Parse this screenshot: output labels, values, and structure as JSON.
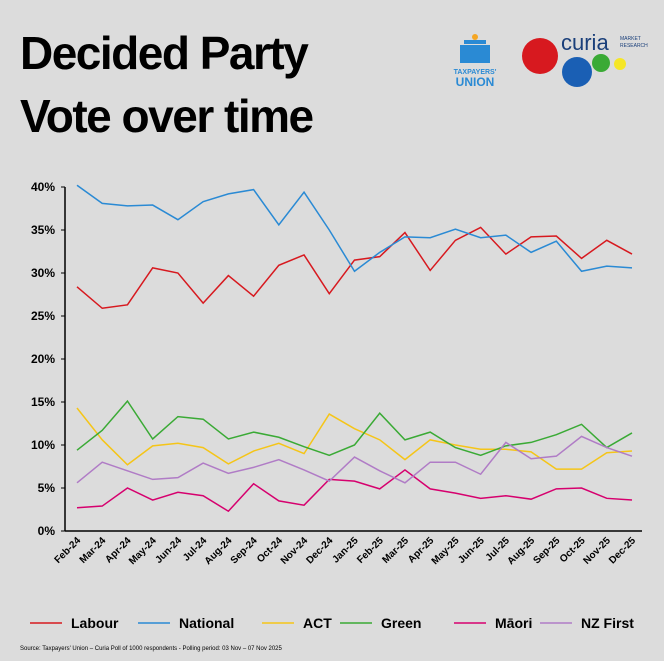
{
  "chart_data": {
    "type": "line",
    "title": "Decided Party Vote over time",
    "categories": [
      "Feb-24",
      "Mar-24",
      "Apr-24",
      "May-24",
      "Jun-24",
      "Jul-24",
      "Aug-24",
      "Sep-24",
      "Oct-24",
      "Nov-24",
      "Dec-24",
      "Jan-25",
      "Feb-25",
      "Mar-25",
      "Apr-25",
      "May-25",
      "Jun-25",
      "Jul-25",
      "Aug-25",
      "Sep-25",
      "Oct-25",
      "Nov-25",
      "Dec-25"
    ],
    "series": [
      {
        "name": "Labour",
        "color": "#d7191f",
        "values": [
          28.4,
          25.9,
          26.3,
          30.6,
          30.0,
          26.5,
          29.7,
          27.3,
          30.9,
          32.1,
          27.6,
          31.5,
          31.9,
          34.7,
          30.3,
          33.8,
          35.3,
          32.2,
          34.2,
          34.3,
          31.7,
          33.8,
          32.2
        ]
      },
      {
        "name": "National",
        "color": "#2a8ad4",
        "values": [
          40.2,
          38.1,
          37.8,
          37.9,
          36.2,
          38.3,
          39.2,
          39.7,
          35.6,
          39.4,
          35.0,
          30.2,
          32.4,
          34.2,
          34.1,
          35.1,
          34.1,
          34.4,
          32.4,
          33.7,
          30.2,
          30.8,
          30.6
        ]
      },
      {
        "name": "ACT",
        "color": "#f5c518",
        "values": [
          14.3,
          10.6,
          7.7,
          9.9,
          10.2,
          9.7,
          7.8,
          9.3,
          10.2,
          9.0,
          13.6,
          11.9,
          10.6,
          8.3,
          10.6,
          10.0,
          9.5,
          9.5,
          9.2,
          7.2,
          7.2,
          9.1,
          9.3
        ]
      },
      {
        "name": "Green",
        "color": "#3aaa35",
        "values": [
          9.4,
          11.7,
          15.1,
          10.7,
          13.3,
          13.0,
          10.7,
          11.5,
          10.9,
          9.8,
          8.8,
          10.0,
          13.7,
          10.6,
          11.5,
          9.7,
          8.8,
          9.9,
          10.3,
          11.2,
          12.4,
          9.7,
          11.4
        ]
      },
      {
        "name": "Māori",
        "color": "#d6006e",
        "values": [
          2.7,
          2.9,
          5.0,
          3.6,
          4.5,
          4.1,
          2.3,
          5.5,
          3.5,
          3.0,
          6.0,
          5.8,
          4.9,
          7.1,
          4.9,
          4.4,
          3.8,
          4.1,
          3.7,
          4.9,
          5.0,
          3.8,
          3.6
        ]
      },
      {
        "name": "NZ First",
        "color": "#b07cc6",
        "values": [
          5.6,
          8.0,
          7.0,
          6.0,
          6.2,
          7.9,
          6.7,
          7.4,
          8.3,
          7.1,
          5.8,
          8.6,
          7.0,
          5.6,
          8.0,
          8.0,
          6.6,
          10.3,
          8.4,
          8.7,
          11.0,
          9.7,
          8.7
        ]
      }
    ],
    "ylim": [
      0,
      40
    ],
    "yticks": [
      {
        "value": 0,
        "label": "0%"
      },
      {
        "value": 5,
        "label": "5%"
      },
      {
        "value": 10,
        "label": "10%"
      },
      {
        "value": 15,
        "label": "15%"
      },
      {
        "value": 20,
        "label": "20%"
      },
      {
        "value": 25,
        "label": "25%"
      },
      {
        "value": 30,
        "label": "30%"
      },
      {
        "value": 35,
        "label": "35%"
      },
      {
        "value": 40,
        "label": "40%"
      }
    ],
    "grid": false,
    "legend": "bottom",
    "source": "Source: Taxpayers' Union – Curia Poll of 1000 respondents - Polling period: 03 Nov – 07 Nov 2025"
  },
  "logos": {
    "taxpayers_union": [
      "TAXPAYERS'",
      "UNION"
    ],
    "curia": "curia",
    "curia_tagline": [
      "MARKET",
      "RESEARCH"
    ]
  }
}
